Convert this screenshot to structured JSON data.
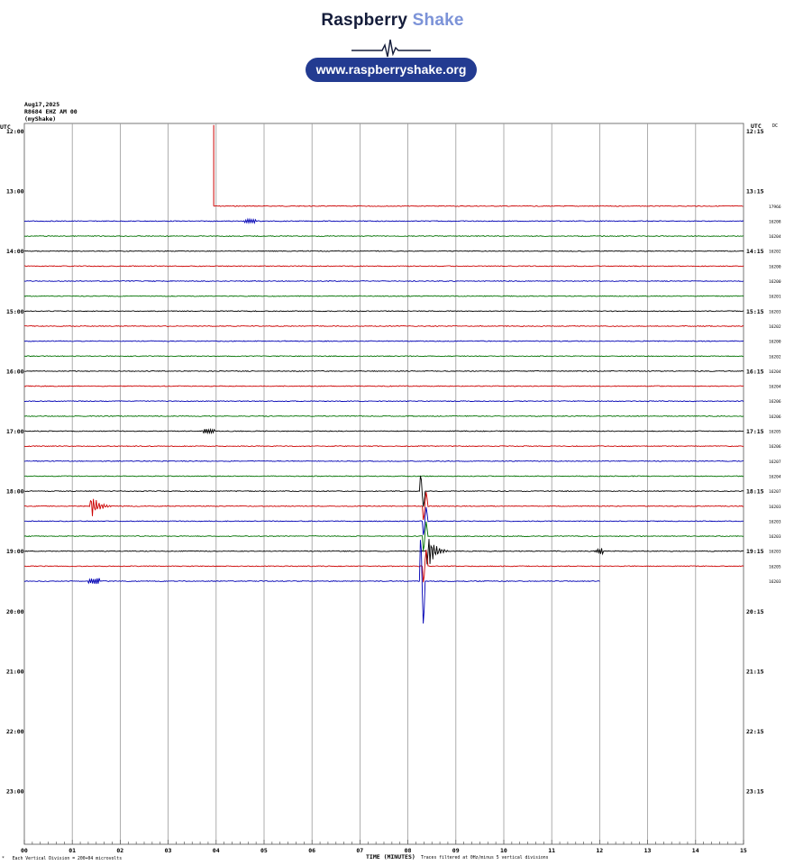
{
  "brand": {
    "name_part1": "Raspberry",
    "name_part2": "Shake",
    "url": "www.raspberryshake.org",
    "colors": {
      "dark": "#141c3a",
      "accent": "#7c93d8",
      "pill": "#233b91"
    }
  },
  "header": {
    "date": "Aug17,2025",
    "station": "R8684 EHZ AM 00",
    "source": "(myShake)"
  },
  "chart_data": {
    "type": "line",
    "title": "",
    "xlabel": "TIME (MINUTES)",
    "xlabel_note": "Traces filtered at 0Hz/minus 5 vertical divisions",
    "scale_note": "Each Vertical Division = 200+04 microvolts",
    "x_ticks": [
      "00",
      "01",
      "02",
      "03",
      "04",
      "05",
      "06",
      "07",
      "08",
      "09",
      "10",
      "11",
      "12",
      "13",
      "14",
      "15"
    ],
    "xlim": [
      0,
      15
    ],
    "grid": true,
    "left_axis_title": "UTC",
    "right_axis_title": "UTC",
    "right_axis_extra": "DC",
    "left_hour_labels": [
      "12:00",
      "13:00",
      "14:00",
      "15:00",
      "16:00",
      "17:00",
      "18:00",
      "19:00",
      "20:00",
      "21:00",
      "22:00",
      "23:00"
    ],
    "right_hour_labels": [
      "12:15",
      "13:15",
      "14:15",
      "15:15",
      "16:15",
      "17:15",
      "18:15",
      "19:15",
      "20:15",
      "21:15",
      "22:15",
      "23:15"
    ],
    "trace_colors": [
      "#000000",
      "#cc0000",
      "#0000b4",
      "#007000"
    ],
    "traces": [
      {
        "start_row": 5,
        "start_min": 3.95,
        "color": "#cc0000",
        "dc": "17966",
        "events": [
          {
            "min": 3.95,
            "amp": 90,
            "kind": "step"
          }
        ]
      },
      {
        "row": 6,
        "color": "#0000b4",
        "dc": "16208",
        "events": [
          {
            "min": 4.7,
            "amp": 2,
            "kind": "burst"
          }
        ]
      },
      {
        "row": 7,
        "color": "#007000",
        "dc": "16204",
        "events": []
      },
      {
        "row": 8,
        "color": "#000000",
        "dc": "16202",
        "events": []
      },
      {
        "row": 9,
        "color": "#cc0000",
        "dc": "16200",
        "events": []
      },
      {
        "row": 10,
        "color": "#0000b4",
        "dc": "16200",
        "events": []
      },
      {
        "row": 11,
        "color": "#007000",
        "dc": "16201",
        "events": []
      },
      {
        "row": 12,
        "color": "#000000",
        "dc": "16203",
        "events": []
      },
      {
        "row": 13,
        "color": "#cc0000",
        "dc": "16202",
        "events": []
      },
      {
        "row": 14,
        "color": "#0000b4",
        "dc": "16200",
        "events": []
      },
      {
        "row": 15,
        "color": "#007000",
        "dc": "16202",
        "events": []
      },
      {
        "row": 16,
        "color": "#000000",
        "dc": "16204",
        "events": []
      },
      {
        "row": 17,
        "color": "#cc0000",
        "dc": "16204",
        "events": []
      },
      {
        "row": 18,
        "color": "#0000b4",
        "dc": "16206",
        "events": []
      },
      {
        "row": 19,
        "color": "#007000",
        "dc": "16206",
        "events": []
      },
      {
        "row": 20,
        "color": "#000000",
        "dc": "16205",
        "events": [
          {
            "min": 3.85,
            "amp": 2,
            "kind": "burst"
          }
        ]
      },
      {
        "row": 21,
        "color": "#cc0000",
        "dc": "16206",
        "events": []
      },
      {
        "row": 22,
        "color": "#0000b4",
        "dc": "16207",
        "events": []
      },
      {
        "row": 23,
        "color": "#007000",
        "dc": "16204",
        "events": []
      },
      {
        "row": 24,
        "color": "#000000",
        "dc": "16207",
        "events": [
          {
            "min": 8.3,
            "amp": 18,
            "kind": "spike"
          }
        ]
      },
      {
        "row": 25,
        "color": "#cc0000",
        "dc": "16203",
        "events": [
          {
            "min": 1.4,
            "amp": 13,
            "kind": "quake"
          },
          {
            "min": 8.35,
            "amp": 16,
            "kind": "spike"
          }
        ]
      },
      {
        "row": 26,
        "color": "#0000b4",
        "dc": "16203",
        "events": [
          {
            "min": 8.35,
            "amp": 16,
            "kind": "spike"
          }
        ]
      },
      {
        "row": 27,
        "color": "#007000",
        "dc": "16203",
        "events": [
          {
            "min": 8.35,
            "amp": 16,
            "kind": "spike"
          }
        ]
      },
      {
        "row": 28,
        "color": "#000000",
        "dc": "16203",
        "events": [
          {
            "min": 8.4,
            "amp": 22,
            "kind": "quake"
          },
          {
            "min": 11.95,
            "amp": 5,
            "kind": "burst"
          }
        ]
      },
      {
        "row": 29,
        "color": "#cc0000",
        "dc": "16205",
        "events": [
          {
            "min": 8.35,
            "amp": 18,
            "kind": "spike"
          }
        ]
      },
      {
        "row": 30,
        "color": "#0000b4",
        "dc": "16203",
        "end_min": 12.0,
        "events": [
          {
            "min": 1.45,
            "amp": 3,
            "kind": "burst"
          },
          {
            "min": 8.3,
            "amp": 48,
            "kind": "spike"
          }
        ]
      }
    ]
  }
}
